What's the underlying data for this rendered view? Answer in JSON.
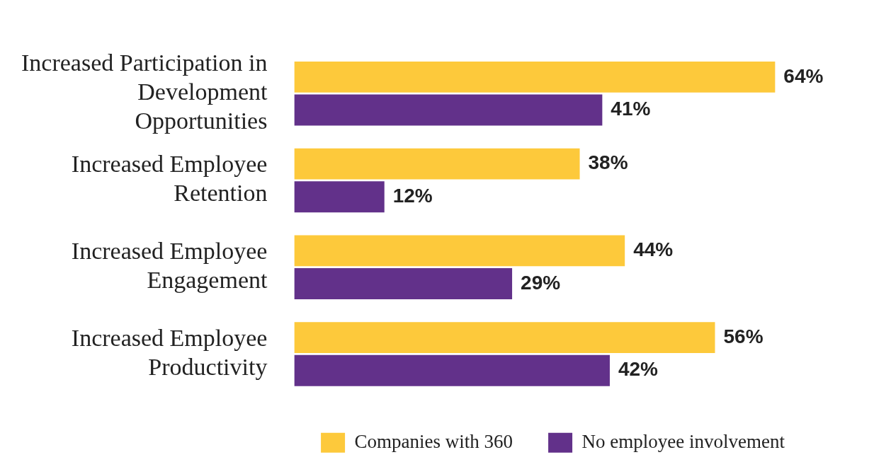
{
  "chart_data": {
    "type": "bar",
    "orientation": "horizontal",
    "categories": [
      "Increased Participation in Development Opportunities",
      "Increased Employee Retention",
      "Increased Employee Engagement",
      "Increased Employee Productivity"
    ],
    "series": [
      {
        "name": "Companies with 360",
        "color": "#fdc93b",
        "values": [
          64,
          38,
          44,
          56
        ],
        "value_labels": [
          "64%",
          "38%",
          "44%",
          "56%"
        ]
      },
      {
        "name": "No employee involvement",
        "color": "#62318a",
        "values": [
          41,
          12,
          29,
          42
        ],
        "value_labels": [
          "41%",
          "12%",
          "29%",
          "42%"
        ]
      }
    ],
    "tick_labels": "y",
    "legend": "bottom"
  }
}
